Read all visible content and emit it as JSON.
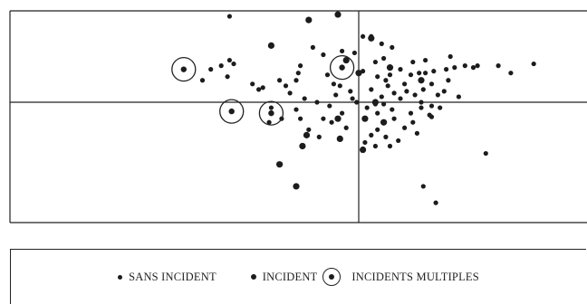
{
  "chart_data": {
    "type": "scatter",
    "xlim": [
      -10,
      10
    ],
    "ylim": [
      -5,
      5
    ],
    "axes": "crossing-at-origin",
    "grid": false,
    "legend_position": "bottom",
    "series": [
      {
        "name": "SANS INCIDENT",
        "marker": "small-dot",
        "points": [
          [
            -6.2,
            4.7
          ],
          [
            -6.2,
            2.3
          ],
          [
            -6.0,
            2.1
          ],
          [
            -6.6,
            2.0
          ],
          [
            -6.3,
            1.4
          ],
          [
            -7.1,
            1.8
          ],
          [
            -7.5,
            1.2
          ],
          [
            -4.6,
            0.8
          ],
          [
            -4.8,
            0.7
          ],
          [
            -3.8,
            1.2
          ],
          [
            -3.5,
            0.9
          ],
          [
            -3.0,
            1.2
          ],
          [
            -2.9,
            1.6
          ],
          [
            -2.8,
            2.0
          ],
          [
            -2.2,
            3.0
          ],
          [
            -1.7,
            2.6
          ],
          [
            -0.8,
            2.8
          ],
          [
            -0.2,
            2.7
          ],
          [
            -1.5,
            1.5
          ],
          [
            -1.2,
            1.0
          ],
          [
            -0.9,
            0.9
          ],
          [
            -0.4,
            0.6
          ],
          [
            0.2,
            1.7
          ],
          [
            0.6,
            0.7
          ],
          [
            0.9,
            1.4
          ],
          [
            -0.3,
            0.2
          ],
          [
            -0.1,
            0.0
          ],
          [
            -2.6,
            0.2
          ],
          [
            -2.0,
            0.0
          ],
          [
            -1.4,
            -0.2
          ],
          [
            -0.8,
            -0.6
          ],
          [
            -1.7,
            -0.9
          ],
          [
            -2.4,
            -1.5
          ],
          [
            -1.3,
            -1.1
          ],
          [
            -0.6,
            -1.4
          ],
          [
            -3.0,
            -0.4
          ],
          [
            -2.8,
            -0.9
          ],
          [
            -3.7,
            -0.9
          ],
          [
            -4.3,
            -1.1
          ],
          [
            -1.9,
            -1.9
          ],
          [
            0.4,
            -0.3
          ],
          [
            0.9,
            -0.6
          ],
          [
            1.2,
            -0.1
          ],
          [
            1.6,
            -0.4
          ],
          [
            1.7,
            -0.9
          ],
          [
            0.9,
            -1.5
          ],
          [
            0.6,
            -1.8
          ],
          [
            0.3,
            -2.2
          ],
          [
            1.3,
            -1.9
          ],
          [
            0.2,
            3.6
          ],
          [
            0.6,
            3.6
          ],
          [
            0.8,
            2.2
          ],
          [
            1.2,
            2.4
          ],
          [
            1.5,
            1.5
          ],
          [
            2.0,
            1.8
          ],
          [
            2.2,
            1.0
          ],
          [
            2.5,
            1.5
          ],
          [
            2.9,
            1.6
          ],
          [
            3.2,
            1.6
          ],
          [
            3.6,
            1.7
          ],
          [
            4.2,
            1.8
          ],
          [
            4.6,
            1.9
          ],
          [
            5.1,
            2.0
          ],
          [
            5.5,
            1.9
          ],
          [
            5.7,
            2.0
          ],
          [
            4.3,
            1.2
          ],
          [
            4.1,
            0.6
          ],
          [
            3.8,
            0.4
          ],
          [
            3.5,
            1.0
          ],
          [
            3.1,
            0.7
          ],
          [
            2.7,
            0.4
          ],
          [
            2.3,
            0.6
          ],
          [
            2.0,
            0.2
          ],
          [
            1.7,
            0.5
          ],
          [
            1.4,
            0.9
          ],
          [
            1.1,
            0.3
          ],
          [
            0.8,
            -0.1
          ],
          [
            2.5,
            -0.6
          ],
          [
            3.0,
            -0.3
          ],
          [
            2.6,
            -1.1
          ],
          [
            2.2,
            -1.4
          ],
          [
            2.8,
            -1.7
          ],
          [
            1.9,
            -2.1
          ],
          [
            1.5,
            -2.4
          ],
          [
            0.8,
            -2.4
          ],
          [
            3.4,
            -0.7
          ],
          [
            3.0,
            0.0
          ],
          [
            3.9,
            -0.3
          ],
          [
            2.6,
            2.2
          ],
          [
            3.2,
            2.3
          ],
          [
            4.4,
            2.5
          ],
          [
            1.6,
            3.0
          ],
          [
            1.1,
            3.2
          ],
          [
            3.5,
            -0.2
          ],
          [
            4.8,
            0.3
          ],
          [
            6.7,
            2.0
          ],
          [
            7.3,
            1.6
          ],
          [
            8.4,
            2.1
          ],
          [
            6.1,
            -2.8
          ],
          [
            3.1,
            -4.6
          ],
          [
            3.7,
            -5.5
          ],
          [
            3.5,
            -0.8
          ],
          [
            1.3,
            1.2
          ],
          [
            -1.1,
            0.4
          ],
          [
            -3.3,
            0.5
          ],
          [
            -5.1,
            1.0
          ],
          [
            -4.2,
            -0.3
          ]
        ]
      },
      {
        "name": "INCIDENT",
        "marker": "large-dot",
        "points": [
          [
            -1.0,
            4.8
          ],
          [
            -2.4,
            4.5
          ],
          [
            -4.2,
            3.1
          ],
          [
            -2.5,
            -1.8
          ],
          [
            -3.0,
            -4.6
          ],
          [
            -3.8,
            -3.4
          ],
          [
            0.6,
            3.5
          ],
          [
            -0.6,
            2.3
          ],
          [
            -1.0,
            -0.9
          ],
          [
            0.3,
            -0.9
          ],
          [
            1.2,
            -1.1
          ],
          [
            -0.9,
            -2.0
          ],
          [
            -2.7,
            -2.4
          ],
          [
            1.5,
            1.9
          ],
          [
            3.0,
            1.2
          ],
          [
            0.2,
            -2.6
          ],
          [
            0.0,
            1.6
          ],
          [
            0.8,
            0.0
          ]
        ]
      },
      {
        "name": "INCIDENTS MULTIPLES",
        "marker": "circled-dot",
        "points": [
          [
            -8.4,
            1.8
          ],
          [
            -0.8,
            1.9
          ],
          [
            -6.1,
            -0.5
          ],
          [
            -4.2,
            -0.6
          ]
        ]
      }
    ]
  },
  "legend": {
    "items": [
      {
        "label": "SANS INCIDENT",
        "icon": "small-dot-icon"
      },
      {
        "label": "INCIDENT",
        "icon": "large-dot-icon"
      },
      {
        "label": "INCIDENTS MULTIPLES",
        "icon": "circled-dot-icon"
      }
    ]
  }
}
